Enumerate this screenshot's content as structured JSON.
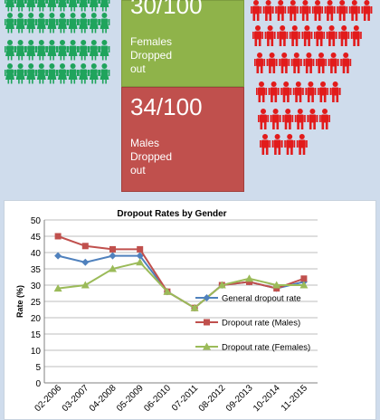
{
  "colors": {
    "background": "#cfdcec",
    "female_figure": "#1fa45c",
    "male_figure": "#e21b1b",
    "female_box": "#8fb34a",
    "male_box": "#c0504d",
    "general_series": "#4f81bd",
    "male_series": "#c0504d",
    "female_series": "#9bbb59"
  },
  "icons": {
    "female": "female-person-icon",
    "male": "male-person-icon"
  },
  "female_stat": {
    "value": "30/100",
    "label": "Females\nDropped\nout"
  },
  "male_stat": {
    "value": "34/100",
    "label": "Males\nDropped\nout"
  },
  "chart_data": {
    "type": "line",
    "title": "Dropout Rates by Gender",
    "ylabel": "Rate (%)",
    "xlabel": "",
    "ylim": [
      0,
      50
    ],
    "yticks": [
      0,
      5,
      10,
      15,
      20,
      25,
      30,
      35,
      40,
      45,
      50
    ],
    "grid": true,
    "legend": "right",
    "categories": [
      "2002-2006",
      "2003-2007",
      "2004-2008",
      "2005-2009",
      "2006-2010",
      "2007-2011",
      "2008-2012",
      "2009-2013",
      "2010-2014",
      "2011-2015"
    ],
    "tick_labels": [
      "02-2006",
      "03-2007",
      "04-2008",
      "05-2009",
      "06-2010",
      "07-2011",
      "08-2012",
      "09-2013",
      "10-2014",
      "11-2015"
    ],
    "series": [
      {
        "name": "General dropout rate",
        "marker": "diamond",
        "values": [
          39,
          37,
          39,
          39,
          28,
          23,
          30,
          31,
          29,
          31
        ]
      },
      {
        "name": "Dropout rate (Males)",
        "marker": "square",
        "values": [
          45,
          42,
          41,
          41,
          28,
          23,
          30,
          31,
          29,
          32
        ]
      },
      {
        "name": "Dropout rate (Females)",
        "marker": "triangle",
        "values": [
          29,
          30,
          35,
          37,
          28,
          23,
          30,
          32,
          30,
          30
        ]
      }
    ]
  }
}
